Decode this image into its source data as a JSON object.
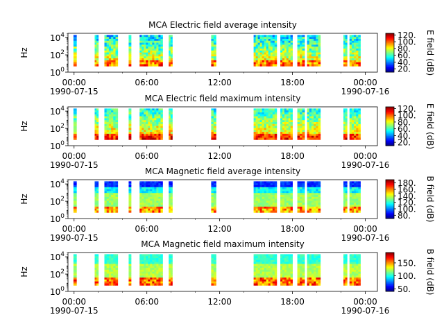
{
  "chart_data": [
    {
      "type": "heatmap",
      "title": "MCA  Electric field average intensity",
      "ylabel": "Hz",
      "yscale": "log",
      "y_ticks": [
        {
          "base": "10",
          "exp": "0"
        },
        {
          "base": "10",
          "exp": "2"
        },
        {
          "base": "10",
          "exp": "4"
        }
      ],
      "ylim": [
        1,
        31000
      ],
      "x_ticks": [
        "00:00",
        "06:00",
        "12:00",
        "18:00",
        "00:00"
      ],
      "x_ticks_hours": [
        0,
        6,
        12,
        18,
        24
      ],
      "x_date_labels": [
        "1990-07-15",
        "1990-07-16"
      ],
      "xlim_hours": [
        -0.5,
        25
      ],
      "colorbar": {
        "label": "E field (dB)",
        "min": 10,
        "max": 125,
        "ticks": [
          "20.",
          "40.",
          "60.",
          "80.",
          "100.",
          "120."
        ],
        "tick_values": [
          20,
          40,
          60,
          80,
          100,
          120
        ]
      },
      "variant": "e_avg"
    },
    {
      "type": "heatmap",
      "title": "MCA  Electric field maximum intensity",
      "ylabel": "Hz",
      "yscale": "log",
      "y_ticks": [
        {
          "base": "10",
          "exp": "0"
        },
        {
          "base": "10",
          "exp": "2"
        },
        {
          "base": "10",
          "exp": "4"
        }
      ],
      "ylim": [
        1,
        31000
      ],
      "x_ticks": [
        "00:00",
        "06:00",
        "12:00",
        "18:00",
        "00:00"
      ],
      "x_ticks_hours": [
        0,
        6,
        12,
        18,
        24
      ],
      "x_date_labels": [
        "1990-07-15",
        "1990-07-16"
      ],
      "xlim_hours": [
        -0.5,
        25
      ],
      "colorbar": {
        "label": "E field (dB)",
        "min": 10,
        "max": 125,
        "ticks": [
          "20.",
          "40.",
          "60.",
          "80.",
          "100.",
          "120."
        ],
        "tick_values": [
          20,
          40,
          60,
          80,
          100,
          120
        ]
      },
      "variant": "e_max"
    },
    {
      "type": "heatmap",
      "title": "MCA  Magnetic field average intensity",
      "ylabel": "Hz",
      "yscale": "log",
      "y_ticks": [
        {
          "base": "10",
          "exp": "0"
        },
        {
          "base": "10",
          "exp": "2"
        },
        {
          "base": "10",
          "exp": "4"
        }
      ],
      "ylim": [
        1,
        31000
      ],
      "x_ticks": [
        "00:00",
        "06:00",
        "12:00",
        "18:00",
        "00:00"
      ],
      "x_ticks_hours": [
        0,
        6,
        12,
        18,
        24
      ],
      "x_date_labels": [
        "1990-07-15",
        "1990-07-16"
      ],
      "xlim_hours": [
        -0.5,
        25
      ],
      "colorbar": {
        "label": "B field (dB)",
        "min": 70,
        "max": 190,
        "ticks": [
          "80.",
          "100.",
          "120.",
          "140.",
          "160.",
          "180."
        ],
        "tick_values": [
          80,
          100,
          120,
          140,
          160,
          180
        ]
      },
      "variant": "b_avg"
    },
    {
      "type": "heatmap",
      "title": "MCA  Magnetic field maximum intensity",
      "ylabel": "Hz",
      "yscale": "log",
      "y_ticks": [
        {
          "base": "10",
          "exp": "0"
        },
        {
          "base": "10",
          "exp": "2"
        },
        {
          "base": "10",
          "exp": "4"
        }
      ],
      "ylim": [
        1,
        31000
      ],
      "x_ticks": [
        "00:00",
        "06:00",
        "12:00",
        "18:00",
        "00:00"
      ],
      "x_ticks_hours": [
        0,
        6,
        12,
        18,
        24
      ],
      "x_date_labels": [
        "1990-07-15",
        "1990-07-16"
      ],
      "xlim_hours": [
        -0.5,
        25
      ],
      "colorbar": {
        "label": "B field (dB)",
        "min": 40,
        "max": 190,
        "ticks": [
          "50.",
          "100.",
          "150."
        ],
        "tick_values": [
          50,
          100,
          150
        ]
      },
      "variant": "b_max"
    }
  ],
  "data_segments_hours": [
    [
      -0.05,
      0.2
    ],
    [
      1.7,
      2.0
    ],
    [
      2.5,
      3.6
    ],
    [
      4.5,
      4.7
    ],
    [
      5.4,
      7.3
    ],
    [
      7.8,
      8.1
    ],
    [
      11.3,
      11.7
    ],
    [
      14.8,
      16.7
    ],
    [
      17.0,
      18.0
    ],
    [
      18.4,
      19.0
    ],
    [
      19.2,
      20.3
    ],
    [
      22.2,
      22.5
    ],
    [
      22.7,
      23.6
    ]
  ]
}
